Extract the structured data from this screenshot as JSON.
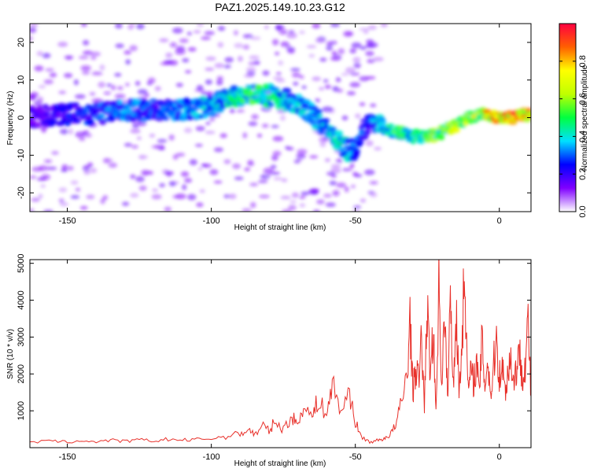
{
  "title": "PAZ1.2025.149.10.23.G12",
  "colorbar": {
    "label": "Normalized spectral amplitude",
    "range": [
      0.0,
      1.0
    ],
    "ticks": [
      "0.0",
      "0.2",
      "0.4",
      "0.6",
      "0.8"
    ],
    "tick_values": [
      0.0,
      0.2,
      0.4,
      0.6,
      0.8
    ],
    "colors": [
      "#ffffff",
      "#8000ff",
      "#0000ff",
      "#00e0ff",
      "#00ff40",
      "#c0ff00",
      "#ffff00",
      "#ff6000",
      "#ff0040"
    ]
  },
  "chart_data": [
    {
      "type": "heatmap",
      "xlabel": "Height of straight line (km)",
      "ylabel": "Frequency (Hz)",
      "xlim": [
        -163,
        11
      ],
      "ylim": [
        -25,
        25
      ],
      "xticks": [
        -150,
        -100,
        -50,
        0
      ],
      "xtick_labels": [
        "-150",
        "-100",
        "-50",
        "0"
      ],
      "yticks": [
        -20,
        -10,
        0,
        10,
        20
      ],
      "ytick_labels": [
        "-20",
        "-10",
        "0",
        "10",
        "20"
      ],
      "dominant_frequency_track": {
        "x": [
          -163,
          -150,
          -140,
          -130,
          -120,
          -110,
          -100,
          -95,
          -90,
          -85,
          -80,
          -75,
          -70,
          -65,
          -60,
          -55,
          -52,
          -50,
          -45,
          -40,
          -35,
          -30,
          -25,
          -20,
          -15,
          -10,
          -5,
          0,
          5,
          10
        ],
        "y": [
          0,
          1,
          1,
          2,
          2,
          2,
          3,
          5,
          6,
          6,
          6,
          5,
          4,
          1,
          -3,
          -7,
          -9,
          -8,
          0,
          -3,
          -4,
          -5,
          -5,
          -4,
          -2,
          0,
          1,
          0,
          0,
          1
        ],
        "amplitude": [
          0.2,
          0.25,
          0.3,
          0.35,
          0.3,
          0.35,
          0.4,
          0.45,
          0.5,
          0.55,
          0.5,
          0.45,
          0.4,
          0.35,
          0.4,
          0.45,
          0.4,
          0.3,
          0.3,
          0.45,
          0.55,
          0.5,
          0.55,
          0.6,
          0.65,
          0.7,
          0.8,
          0.9,
          0.95,
          0.9
        ]
      }
    },
    {
      "type": "line",
      "xlabel": "Height of straight line (km)",
      "ylabel": "SNR (10 * v/v)",
      "xlim": [
        -163,
        11
      ],
      "ylim": [
        0,
        5100
      ],
      "xticks": [
        -150,
        -100,
        -50,
        0
      ],
      "xtick_labels": [
        "-150",
        "-100",
        "-50",
        "0"
      ],
      "yticks": [
        1000,
        2000,
        3000,
        4000,
        5000
      ],
      "ytick_labels": [
        "1000",
        "2000",
        "3000",
        "4000",
        "5000"
      ],
      "color": "#e8302a",
      "series": [
        {
          "x": [
            -163,
            -155,
            -150,
            -145,
            -140,
            -135,
            -130,
            -125,
            -120,
            -115,
            -110,
            -105,
            -100,
            -95,
            -90,
            -87,
            -85,
            -82,
            -80,
            -78,
            -75,
            -72,
            -70,
            -68,
            -65,
            -63,
            -60,
            -58,
            -55,
            -52,
            -50,
            -48,
            -45,
            -42,
            -40,
            -38,
            -36,
            -34,
            -32,
            -31,
            -30,
            -29,
            -28,
            -27,
            -26,
            -25,
            -24,
            -23,
            -22,
            -21,
            -20,
            -19,
            -18,
            -17,
            -16,
            -15,
            -14,
            -13,
            -12,
            -11,
            -10,
            -9,
            -8,
            -7,
            -6,
            -5,
            -4,
            -3,
            -2,
            -1,
            0,
            1,
            2,
            3,
            4,
            5,
            6,
            7,
            8,
            9,
            10,
            11
          ],
          "y": [
            150,
            180,
            150,
            190,
            160,
            200,
            170,
            210,
            180,
            230,
            200,
            220,
            250,
            300,
            380,
            500,
            350,
            600,
            450,
            700,
            500,
            850,
            600,
            1200,
            800,
            1300,
            900,
            1700,
            1000,
            1500,
            700,
            300,
            150,
            200,
            250,
            350,
            600,
            1200,
            2000,
            3500,
            1500,
            2200,
            1800,
            2900,
            1200,
            3800,
            2000,
            3200,
            1000,
            4400,
            1800,
            3500,
            1400,
            4000,
            1700,
            3800,
            1500,
            2800,
            5050,
            1600,
            2000,
            1800,
            2300,
            1500,
            2900,
            1700,
            2400,
            1400,
            2200,
            3000,
            1900,
            2300,
            1500,
            2100,
            2400,
            1800,
            2200,
            2500,
            2000,
            2300,
            3400,
            1400
          ]
        }
      ]
    }
  ]
}
